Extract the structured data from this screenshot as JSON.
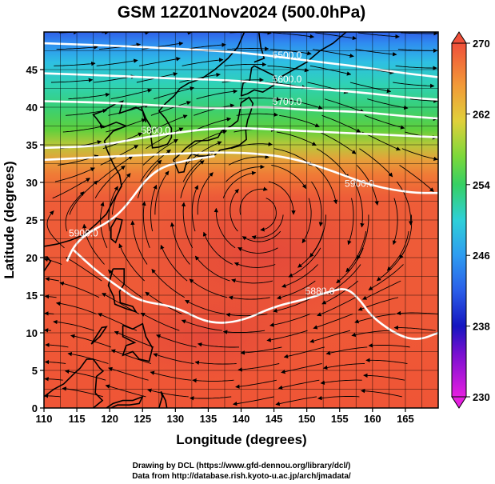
{
  "title": "GSM 12Z01Nov2024 (500.0hPa)",
  "chart_data": {
    "type": "heatmap",
    "map": "streamlines of 500hPa wind over temperature shading with geopotential height contours",
    "xlabel": "Longitude (degrees)",
    "ylabel": "Latitude  (degrees)",
    "xlim": [
      110,
      170
    ],
    "ylim": [
      0,
      50
    ],
    "x_ticks": [
      "110",
      "115",
      "120",
      "125",
      "130",
      "135",
      "140",
      "145",
      "150",
      "155",
      "160",
      "165"
    ],
    "y_ticks": [
      "0",
      "5",
      "10",
      "15",
      "20",
      "25",
      "30",
      "35",
      "40",
      "45"
    ],
    "colorbar": {
      "min": 230,
      "max": 270,
      "tick_labels": [
        "270",
        "262",
        "254",
        "246",
        "238",
        "230"
      ],
      "tick_values": [
        270,
        262,
        254,
        246,
        238,
        230
      ]
    },
    "contours": [
      {
        "label": "5500.0",
        "label_lon": 147,
        "label_lat": 46.5,
        "path": [
          [
            110,
            48.5
          ],
          [
            120,
            48.2
          ],
          [
            130,
            47.8
          ],
          [
            138,
            47.4
          ],
          [
            144,
            46.9
          ],
          [
            150,
            46.2
          ],
          [
            158,
            45.4
          ],
          [
            165,
            44.5
          ],
          [
            170,
            44
          ]
        ]
      },
      {
        "label": "5600.0",
        "label_lon": 147,
        "label_lat": 43.3,
        "path": [
          [
            110,
            44.5
          ],
          [
            120,
            44.2
          ],
          [
            130,
            43.8
          ],
          [
            138,
            43.6
          ],
          [
            144,
            43.2
          ],
          [
            150,
            42.5
          ],
          [
            158,
            42
          ],
          [
            165,
            41.3
          ],
          [
            170,
            41
          ]
        ]
      },
      {
        "label": "5700.0",
        "label_lon": 147,
        "label_lat": 40.3,
        "path": [
          [
            110,
            40.8
          ],
          [
            120,
            40.6
          ],
          [
            128,
            40.2
          ],
          [
            136,
            39.8
          ],
          [
            144,
            40.1
          ],
          [
            150,
            39.6
          ],
          [
            158,
            39.4
          ],
          [
            165,
            38.8
          ],
          [
            170,
            38.5
          ]
        ]
      },
      {
        "label": "5800.0",
        "label_lon": 127,
        "label_lat": 36.5,
        "path": [
          [
            110,
            34.6
          ],
          [
            118,
            34.8
          ],
          [
            124,
            35.8
          ],
          [
            130,
            36.6
          ],
          [
            136,
            37.2
          ],
          [
            142,
            37.2
          ],
          [
            150,
            36.8
          ],
          [
            158,
            36.5
          ],
          [
            165,
            36.2
          ],
          [
            170,
            36
          ]
        ]
      },
      {
        "label": "5900.0",
        "label_lon": 158,
        "label_lat": 29.4,
        "path": [
          [
            110,
            33
          ],
          [
            117,
            33.3
          ],
          [
            124,
            33.6
          ],
          [
            130,
            33.8
          ],
          [
            136,
            34
          ],
          [
            142,
            33.9
          ],
          [
            148,
            33.2
          ],
          [
            154,
            31.5
          ],
          [
            160,
            29.5
          ],
          [
            166,
            28.6
          ],
          [
            170,
            28.6
          ]
        ]
      },
      {
        "label": "5900.0",
        "label_lon": 116,
        "label_lat": 22.8,
        "path": [
          [
            113.5,
            19.5
          ],
          [
            114.5,
            21.5
          ],
          [
            116.5,
            23.2
          ],
          [
            119.5,
            24.6
          ],
          [
            121.5,
            25.9
          ],
          [
            123.5,
            28
          ],
          [
            125.5,
            30.4
          ],
          [
            128,
            32.1
          ],
          [
            132,
            33
          ],
          [
            136,
            33.5
          ]
        ]
      },
      {
        "label": "5880.0",
        "label_lon": 152,
        "label_lat": 15.1,
        "path": [
          [
            114.5,
            21
          ],
          [
            118,
            18.2
          ],
          [
            121.5,
            16
          ],
          [
            124.5,
            14.2
          ],
          [
            130,
            13.5
          ],
          [
            135,
            11.2
          ],
          [
            140,
            11.5
          ],
          [
            145,
            13.5
          ],
          [
            150,
            14.5
          ],
          [
            153.5,
            15.5
          ],
          [
            156,
            16
          ],
          [
            158,
            14.5
          ],
          [
            160,
            12
          ],
          [
            164,
            9.6
          ],
          [
            167,
            9
          ],
          [
            170,
            10
          ]
        ]
      }
    ]
  },
  "credits": {
    "line1": "Drawing by DCL (https://www.gfd-dennou.org/library/dcl/)",
    "line2": "Data from http://database.rish.kyoto-u.ac.jp/arch/jmadata/"
  },
  "colors": {
    "warm": "#e8503a",
    "gradient_stops": [
      "#f25a3c",
      "#f0843a",
      "#e0b53a",
      "#a8d43a",
      "#39d03c",
      "#2fd4a2",
      "#2ec7e0",
      "#2f8ff0",
      "#2b56e6",
      "#1f1fc8",
      "#8a0fd0",
      "#e01adf"
    ],
    "contour_line": "#ffffff",
    "streamline": "#000000"
  }
}
